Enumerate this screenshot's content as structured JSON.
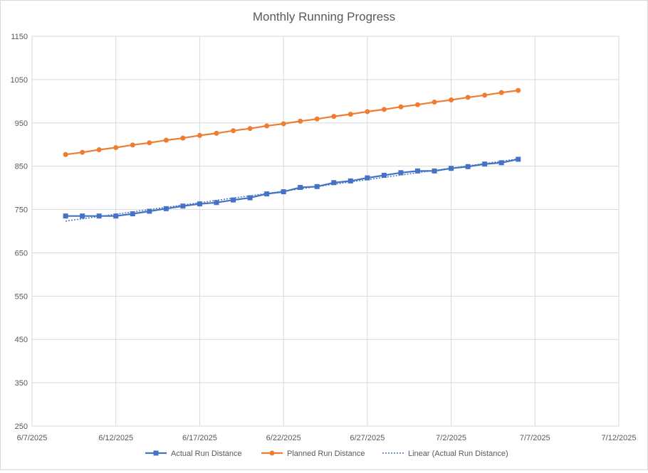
{
  "chart_data": {
    "type": "line",
    "title": "Monthly Running Progress",
    "xlabel": "",
    "ylabel": "",
    "x_axis": {
      "type": "date",
      "min": "2025-06-07",
      "max": "2025-07-12",
      "ticks": [
        "2025-06-07",
        "2025-06-12",
        "2025-06-17",
        "2025-06-22",
        "2025-06-27",
        "2025-07-02",
        "2025-07-07",
        "2025-07-12"
      ],
      "tick_labels": [
        "6/7/2025",
        "6/12/2025",
        "6/17/2025",
        "6/22/2025",
        "6/27/2025",
        "7/2/2025",
        "7/7/2025",
        "7/12/2025"
      ]
    },
    "y_axis": {
      "min": 250,
      "max": 1150,
      "ticks": [
        250,
        350,
        450,
        550,
        650,
        750,
        850,
        950,
        1050,
        1150
      ],
      "tick_labels": [
        "250",
        "350",
        "450",
        "550",
        "650",
        "750",
        "850",
        "950",
        "1050",
        "1150"
      ]
    },
    "grid": true,
    "legend_position": "bottom",
    "x": [
      "2025-06-09",
      "2025-06-10",
      "2025-06-11",
      "2025-06-12",
      "2025-06-13",
      "2025-06-14",
      "2025-06-15",
      "2025-06-16",
      "2025-06-17",
      "2025-06-18",
      "2025-06-19",
      "2025-06-20",
      "2025-06-21",
      "2025-06-22",
      "2025-06-23",
      "2025-06-24",
      "2025-06-25",
      "2025-06-26",
      "2025-06-27",
      "2025-06-28",
      "2025-06-29",
      "2025-06-30",
      "2025-07-01",
      "2025-07-02",
      "2025-07-03",
      "2025-07-04",
      "2025-07-05",
      "2025-07-06"
    ],
    "series": [
      {
        "name": "Actual Run Distance",
        "color": "#4472C4",
        "marker": "square",
        "values": [
          735,
          735,
          735,
          735,
          740,
          746,
          752,
          758,
          763,
          766,
          772,
          777,
          786,
          791,
          801,
          803,
          812,
          816,
          823,
          829,
          835,
          839,
          839,
          845,
          849,
          855,
          858,
          866
        ]
      },
      {
        "name": "Planned Run Distance",
        "color": "#ED7D31",
        "marker": "circle",
        "values": [
          877,
          882,
          888,
          893,
          899,
          904,
          910,
          915,
          921,
          926,
          932,
          937,
          943,
          948,
          954,
          959,
          965,
          970,
          976,
          981,
          987,
          992,
          998,
          1003,
          1009,
          1014,
          1020,
          1025
        ]
      }
    ],
    "trendline": {
      "name": "Linear (Actual Run Distance)",
      "of_series": "Actual Run Distance",
      "type": "linear",
      "color": "#4472C4",
      "style": "dotted"
    }
  }
}
